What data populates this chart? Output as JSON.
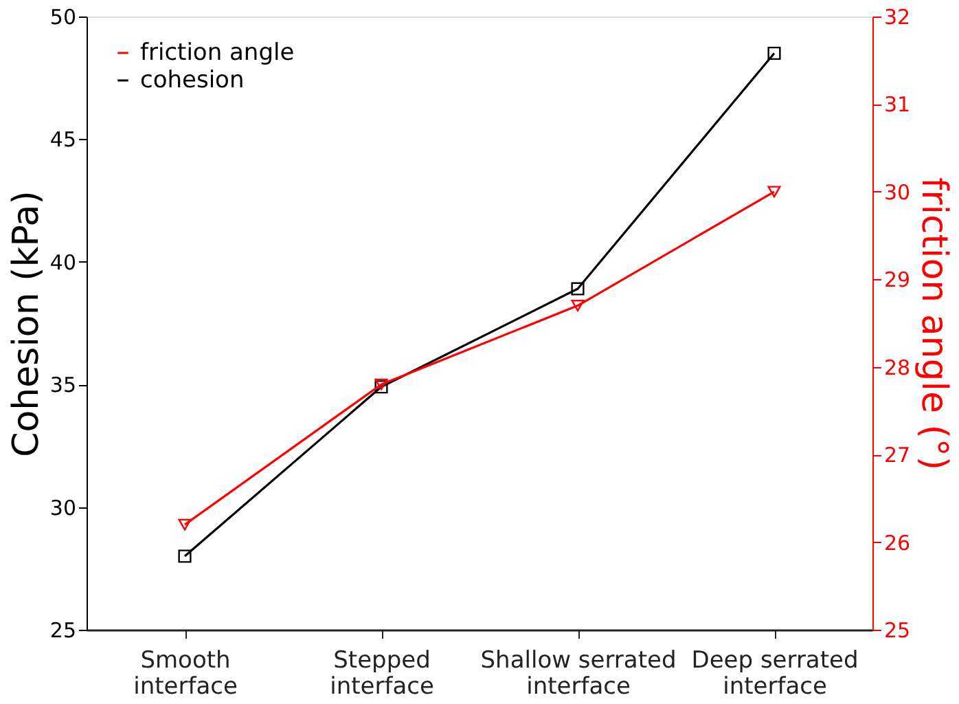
{
  "chart_data": {
    "type": "line",
    "categories": [
      "Smooth\ninterface",
      "Stepped\ninterface",
      "Shallow serrated\ninterface",
      "Deep serrated\ninterface"
    ],
    "series": [
      {
        "name": "friction angle",
        "color": "#ff0000",
        "values": [
          26.2,
          27.8,
          28.7,
          30.0
        ],
        "axis": "y2",
        "marker": "triangle"
      },
      {
        "name": "cohesion",
        "color": "#000000",
        "values": [
          28.0,
          34.9,
          38.9,
          48.5
        ],
        "marker": "square"
      }
    ],
    "ylabel": "Cohesion (kPa)",
    "y2label": "friction angle (°)",
    "ylim": [
      25,
      50
    ],
    "yticks": [
      25,
      30,
      35,
      40,
      45,
      50
    ],
    "y2lim": [
      25,
      32
    ],
    "y2ticks": [
      25,
      26,
      27,
      28,
      29,
      30,
      31,
      32
    ],
    "legend": "top left",
    "grid": false,
    "line_style": "solid"
  }
}
